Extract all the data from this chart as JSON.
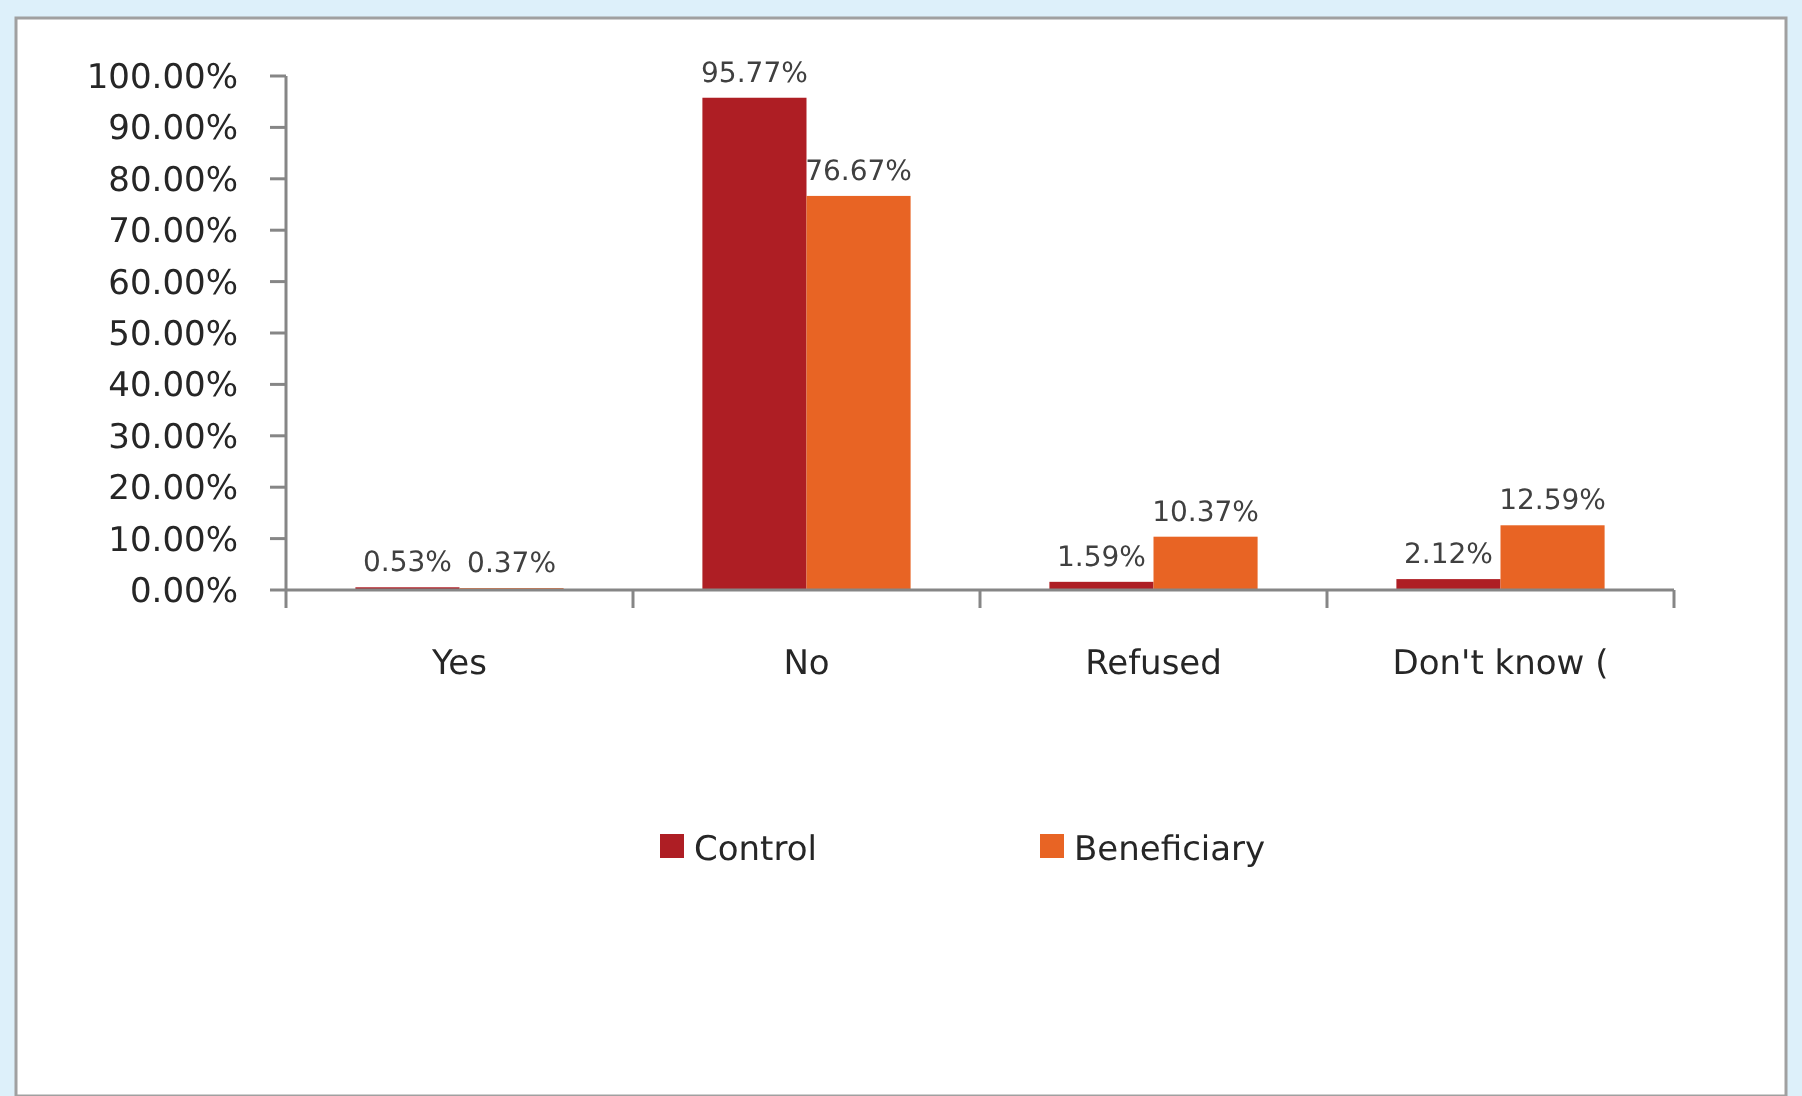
{
  "chart_data": {
    "type": "bar",
    "categories": [
      "Yes",
      "No",
      "Refused",
      "Don't know ("
    ],
    "series": [
      {
        "name": "Control",
        "color": "#ae1e24",
        "values": [
          0.53,
          95.77,
          1.59,
          2.12
        ],
        "value_labels": [
          "0.53%",
          "95.77%",
          "1.59%",
          "2.12%"
        ]
      },
      {
        "name": "Beneficiary",
        "color": "#e86424",
        "values": [
          0.37,
          76.67,
          10.37,
          12.59
        ],
        "value_labels": [
          "0.37%",
          "76.67%",
          "10.37%",
          "12.59%"
        ]
      }
    ],
    "ylim": [
      0,
      100
    ],
    "yticks": [
      {
        "value": 0,
        "label": "0.00%"
      },
      {
        "value": 10,
        "label": "10.00%"
      },
      {
        "value": 20,
        "label": "20.00%"
      },
      {
        "value": 30,
        "label": "30.00%"
      },
      {
        "value": 40,
        "label": "40.00%"
      },
      {
        "value": 50,
        "label": "50.00%"
      },
      {
        "value": 60,
        "label": "60.00%"
      },
      {
        "value": 70,
        "label": "70.00%"
      },
      {
        "value": 80,
        "label": "80.00%"
      },
      {
        "value": 90,
        "label": "90.00%"
      },
      {
        "value": 100,
        "label": "100.00%"
      }
    ],
    "grid": false,
    "legend": "bottom"
  }
}
